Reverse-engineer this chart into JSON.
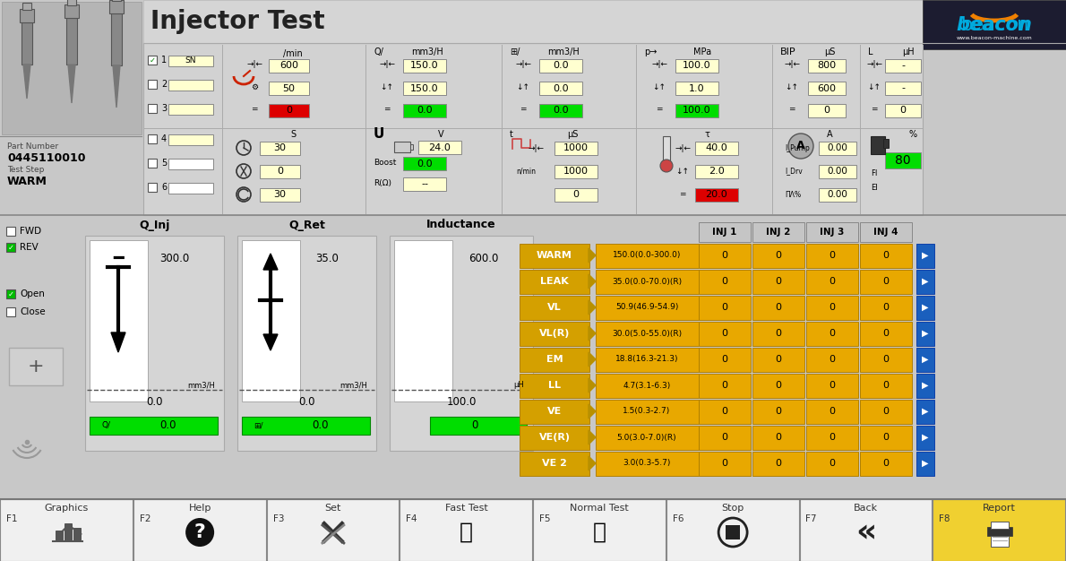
{
  "bg_color": "#c8c8c8",
  "white": "#ffffff",
  "light_yellow": "#ffffd0",
  "green_val": "#00dd00",
  "red_val": "#dd0000",
  "gold": "#e8a800",
  "blue_btn": "#1a5fbd",
  "beacon_blue": "#00aadd",
  "beacon_orange": "#f08000",
  "beacon_dark": "#1a1a2e",
  "title": "Injector Test",
  "part_number": "0445110010",
  "test_step": "WARM",
  "rpm_values": [
    "600",
    "50",
    "0"
  ],
  "rpm_colors": [
    "#ffffd0",
    "#ffffd0",
    "#dd0000"
  ],
  "flow1_values": [
    "150.0",
    "150.0",
    "0.0"
  ],
  "flow1_colors": [
    "#ffffd0",
    "#ffffd0",
    "#00dd00"
  ],
  "flow2_values": [
    "0.0",
    "0.0",
    "0.0"
  ],
  "flow2_colors": [
    "#ffffd0",
    "#ffffd0",
    "#00dd00"
  ],
  "pressure_values": [
    "100.0",
    "1.0",
    "100.0"
  ],
  "pressure_colors": [
    "#ffffd0",
    "#ffffd0",
    "#00dd00"
  ],
  "bip_values": [
    "800",
    "600",
    "0"
  ],
  "bip_colors": [
    "#ffffd0",
    "#ffffd0",
    "#ffffd0"
  ],
  "inductance_top_values": [
    "-",
    "-",
    "0"
  ],
  "inductance_top_colors": [
    "#ffffd0",
    "#ffffd0",
    "#ffffd0"
  ],
  "time_values": [
    "30",
    "0",
    "30"
  ],
  "voltage_values": [
    "24.0",
    "0.0",
    "--"
  ],
  "voltage_colors": [
    "#ffffd0",
    "#00dd00",
    "#ffffd0"
  ],
  "pulse_values": [
    "1000",
    "1000",
    "0"
  ],
  "temp_values": [
    "40.0",
    "2.0",
    "20.0"
  ],
  "temp_colors": [
    "#ffffd0",
    "#ffffd0",
    "#dd0000"
  ],
  "current_values": [
    "0.00",
    "0.00",
    "0.00"
  ],
  "fuel_pct": "80",
  "q_inj_val": "300.0",
  "q_ret_val": "35.0",
  "inductance_mid_val": "600.0",
  "q_inj_bottom": "0.0",
  "q_ret_bottom": "0.0",
  "inductance_mid_bottom": "100.0",
  "q_inj_green": "0.0",
  "q_ret_green": "0.0",
  "inductance_mid_green": "0",
  "test_rows": [
    {
      "name": "WARM",
      "range": "150.0(0.0-300.0)",
      "v1": "0",
      "v2": "0",
      "v3": "0",
      "v4": "0"
    },
    {
      "name": "LEAK",
      "range": "35.0(0.0-70.0)(R)",
      "v1": "0",
      "v2": "0",
      "v3": "0",
      "v4": "0"
    },
    {
      "name": "VL",
      "range": "50.9(46.9-54.9)",
      "v1": "0",
      "v2": "0",
      "v3": "0",
      "v4": "0"
    },
    {
      "name": "VL(R)",
      "range": "30.0(5.0-55.0)(R)",
      "v1": "0",
      "v2": "0",
      "v3": "0",
      "v4": "0"
    },
    {
      "name": "EM",
      "range": "18.8(16.3-21.3)",
      "v1": "0",
      "v2": "0",
      "v3": "0",
      "v4": "0"
    },
    {
      "name": "LL",
      "range": "4.7(3.1-6.3)",
      "v1": "0",
      "v2": "0",
      "v3": "0",
      "v4": "0"
    },
    {
      "name": "VE",
      "range": "1.5(0.3-2.7)",
      "v1": "0",
      "v2": "0",
      "v3": "0",
      "v4": "0"
    },
    {
      "name": "VE(R)",
      "range": "5.0(3.0-7.0)(R)",
      "v1": "0",
      "v2": "0",
      "v3": "0",
      "v4": "0"
    },
    {
      "name": "VE 2",
      "range": "3.0(0.3-5.7)",
      "v1": "0",
      "v2": "0",
      "v3": "0",
      "v4": "0"
    }
  ],
  "inj_headers": [
    "INJ 1",
    "INJ 2",
    "INJ 3",
    "INJ 4"
  ],
  "function_keys": [
    {
      "label": "Graphics",
      "key": "F1",
      "color": "#f0f0f0"
    },
    {
      "label": "Help",
      "key": "F2",
      "color": "#f0f0f0"
    },
    {
      "label": "Set",
      "key": "F3",
      "color": "#f0f0f0"
    },
    {
      "label": "Fast Test",
      "key": "F4",
      "color": "#f0f0f0"
    },
    {
      "label": "Normal Test",
      "key": "F5",
      "color": "#f0f0f0"
    },
    {
      "label": "Stop",
      "key": "F6",
      "color": "#f0f0f0"
    },
    {
      "label": "Back",
      "key": "F7",
      "color": "#f0f0f0"
    },
    {
      "label": "Report",
      "key": "F8",
      "color": "#f0d030"
    }
  ]
}
